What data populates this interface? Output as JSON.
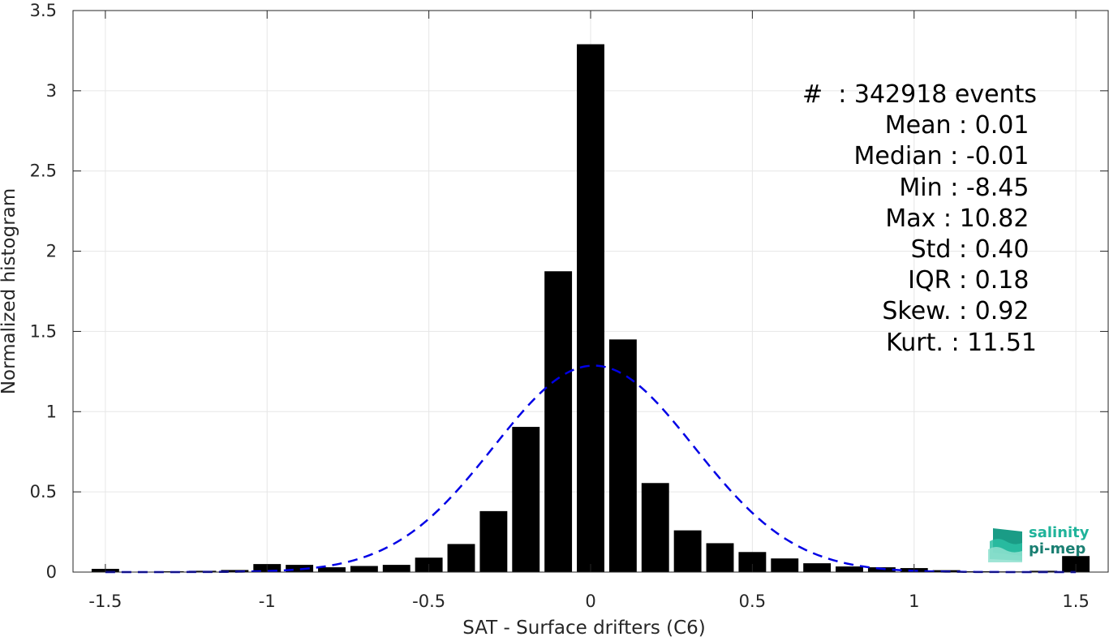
{
  "chart_data": {
    "type": "bar",
    "xlabel": "SAT - Surface drifters (C6)",
    "ylabel": "Normalized histogram",
    "xlim": [
      -1.6,
      1.6
    ],
    "ylim": [
      0,
      3.5
    ],
    "xticks": [
      -1.5,
      -1,
      -0.5,
      0,
      0.5,
      1,
      1.5
    ],
    "xtick_labels": [
      "-1.5",
      "-1",
      "-0.5",
      "0",
      "0.5",
      "1",
      "1.5"
    ],
    "yticks": [
      0,
      0.5,
      1,
      1.5,
      2,
      2.5,
      3,
      3.5
    ],
    "ytick_labels": [
      "0",
      "0.5",
      "1",
      "1.5",
      "2",
      "2.5",
      "3",
      "3.5"
    ],
    "grid": true,
    "bar_color": "#000000",
    "fit_color": "#0000e6",
    "bins": [
      {
        "x": -1.5,
        "value": 0.02
      },
      {
        "x": -1.4,
        "value": 0.0
      },
      {
        "x": -1.3,
        "value": 0.005
      },
      {
        "x": -1.2,
        "value": 0.008
      },
      {
        "x": -1.1,
        "value": 0.013
      },
      {
        "x": -1.0,
        "value": 0.05
      },
      {
        "x": -0.9,
        "value": 0.045
      },
      {
        "x": -0.8,
        "value": 0.03
      },
      {
        "x": -0.7,
        "value": 0.038
      },
      {
        "x": -0.6,
        "value": 0.045
      },
      {
        "x": -0.5,
        "value": 0.09
      },
      {
        "x": -0.4,
        "value": 0.175
      },
      {
        "x": -0.3,
        "value": 0.38
      },
      {
        "x": -0.2,
        "value": 0.905
      },
      {
        "x": -0.1,
        "value": 1.875
      },
      {
        "x": 0.0,
        "value": 3.29
      },
      {
        "x": 0.1,
        "value": 1.45
      },
      {
        "x": 0.2,
        "value": 0.555
      },
      {
        "x": 0.3,
        "value": 0.26
      },
      {
        "x": 0.4,
        "value": 0.18
      },
      {
        "x": 0.5,
        "value": 0.125
      },
      {
        "x": 0.6,
        "value": 0.085
      },
      {
        "x": 0.7,
        "value": 0.055
      },
      {
        "x": 0.8,
        "value": 0.035
      },
      {
        "x": 0.9,
        "value": 0.03
      },
      {
        "x": 1.0,
        "value": 0.025
      },
      {
        "x": 1.1,
        "value": 0.012
      },
      {
        "x": 1.2,
        "value": 0.005
      },
      {
        "x": 1.3,
        "value": 0.004
      },
      {
        "x": 1.4,
        "value": 0.008
      },
      {
        "x": 1.5,
        "value": 0.1
      }
    ],
    "gaussian_fit": {
      "mean": 0.01,
      "std": 0.31,
      "style": "dashed"
    }
  },
  "stats": [
    "#  : 342918 events",
    "Mean : 0.01 ",
    "Median : -0.01 ",
    "Min : -8.45 ",
    "Max : 10.82 ",
    "Std : 0.40 ",
    "IQR : 0.18 ",
    "Skew. : 0.92 ",
    "Kurt. : 11.51"
  ],
  "logo": {
    "line1": "salinity",
    "line2": "pi-mep"
  }
}
